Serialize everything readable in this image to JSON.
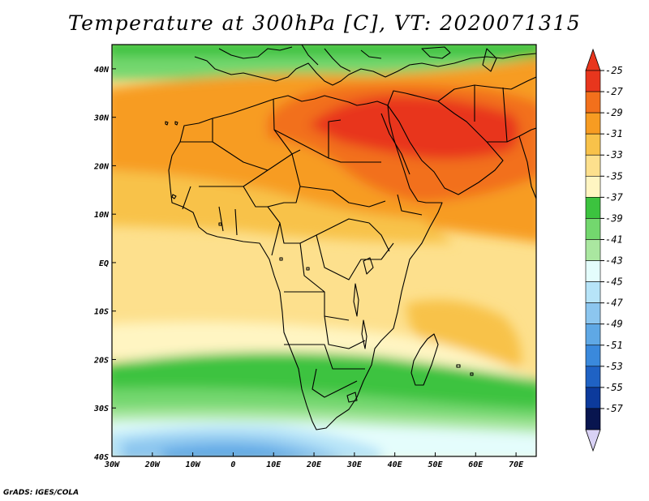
{
  "title": "Temperature at 300hPa [C], VT: 2020071315",
  "credit": "GrADS: IGES/COLA",
  "map": {
    "variable": "Temperature",
    "level": "300hPa",
    "units": "C",
    "valid_time": "2020071315",
    "lon_range": [
      -30,
      75
    ],
    "lat_range": [
      -40,
      45
    ],
    "lon_ticks": [
      "30W",
      "20W",
      "10W",
      "0",
      "10E",
      "20E",
      "30E",
      "40E",
      "50E",
      "60E",
      "70E"
    ],
    "lat_ticks": [
      "40N",
      "30N",
      "20N",
      "10N",
      "EQ",
      "10S",
      "20S",
      "30S",
      "40S"
    ]
  },
  "colorbar": {
    "labels": [
      "-25",
      "-27",
      "-29",
      "-31",
      "-33",
      "-35",
      "-37",
      "-39",
      "-41",
      "-43",
      "-45",
      "-47",
      "-49",
      "-51",
      "-53",
      "-55",
      "-57"
    ],
    "colors": [
      "#e8361d",
      "#f2701c",
      "#f79c22",
      "#f8c24a",
      "#fde08d",
      "#fff5c2",
      "#3cc33f",
      "#73d76e",
      "#aae7a0",
      "#e4fdfc",
      "#b7e4f8",
      "#8cc6ef",
      "#5fa8e5",
      "#3a89dc",
      "#1f62c4",
      "#0c3a9c",
      "#08154f"
    ],
    "top_arrow_color": "#e8361d",
    "bottom_arrow_color": "#d9d2f5"
  }
}
